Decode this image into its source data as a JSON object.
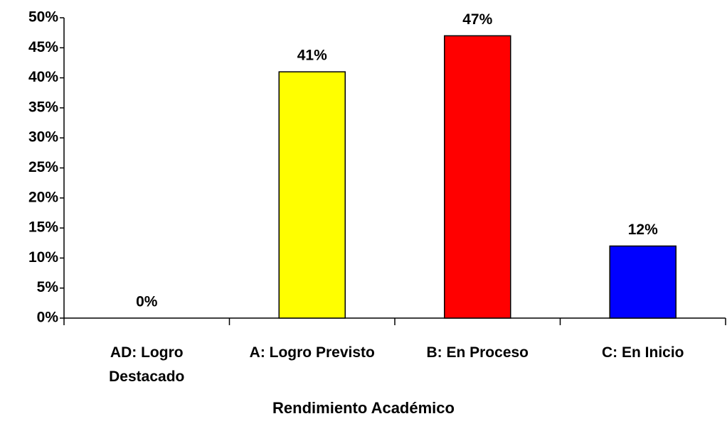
{
  "chart_data": {
    "type": "bar",
    "x_label": "Rendimiento Académico",
    "categories": [
      "AD: Logro Destacado",
      "A: Logro Previsto",
      "B: En Proceso",
      "C: En Inicio"
    ],
    "values": [
      0,
      41,
      47,
      12
    ],
    "value_labels": [
      "0%",
      "41%",
      "47%",
      "12%"
    ],
    "colors": [
      "#ffffff",
      "#ffff00",
      "#ff0000",
      "#0000ff"
    ],
    "ylim": [
      0,
      50
    ],
    "yticks": [
      {
        "value": 0,
        "label": "0%"
      },
      {
        "value": 5,
        "label": "5%"
      },
      {
        "value": 10,
        "label": "10%"
      },
      {
        "value": 15,
        "label": "15%"
      },
      {
        "value": 20,
        "label": "20%"
      },
      {
        "value": 25,
        "label": "25%"
      },
      {
        "value": 30,
        "label": "30%"
      },
      {
        "value": 35,
        "label": "35%"
      },
      {
        "value": 40,
        "label": "40%"
      },
      {
        "value": 45,
        "label": "45%"
      },
      {
        "value": 50,
        "label": "50%"
      }
    ],
    "grid": false
  }
}
